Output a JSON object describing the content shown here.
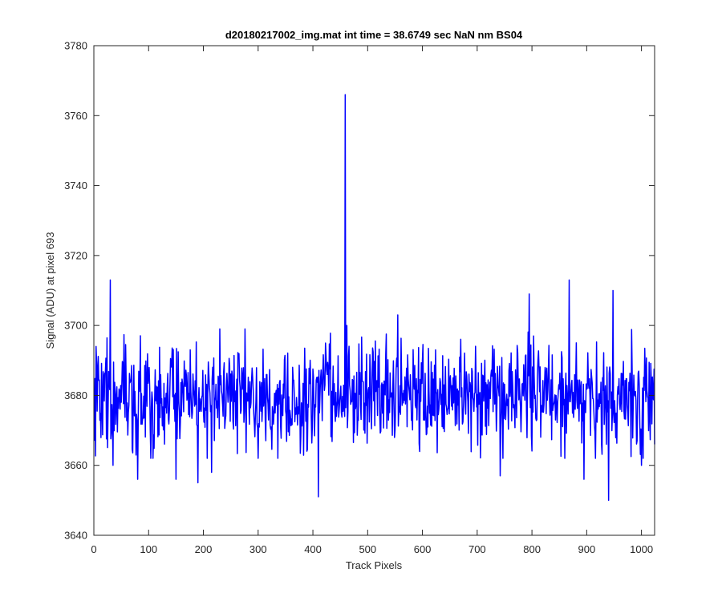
{
  "chart_data": {
    "type": "line",
    "title": "d20180217002_img.mat int time = 38.6749 sec  NaN nm BS04",
    "xlabel": "Track Pixels",
    "ylabel": "Signal (ADU) at pixel 693",
    "xlim": [
      0,
      1024
    ],
    "ylim": [
      3640,
      3780
    ],
    "xticks": [
      0,
      100,
      200,
      300,
      400,
      500,
      600,
      700,
      800,
      900,
      1000
    ],
    "yticks": [
      3640,
      3660,
      3680,
      3700,
      3720,
      3740,
      3760,
      3780
    ],
    "grid": false,
    "box": true,
    "series": [
      {
        "color": "#0000ff",
        "x_start": 1,
        "x_step": 1,
        "mean": 3680,
        "notable_points": [
          {
            "x": 1,
            "y": 3667
          },
          {
            "x": 4,
            "y": 3694
          },
          {
            "x": 30,
            "y": 3713
          },
          {
            "x": 35,
            "y": 3660
          },
          {
            "x": 80,
            "y": 3656
          },
          {
            "x": 150,
            "y": 3656
          },
          {
            "x": 190,
            "y": 3655
          },
          {
            "x": 215,
            "y": 3658
          },
          {
            "x": 410,
            "y": 3651
          },
          {
            "x": 459,
            "y": 3766
          },
          {
            "x": 462,
            "y": 3700
          },
          {
            "x": 555,
            "y": 3703
          },
          {
            "x": 742,
            "y": 3657
          },
          {
            "x": 795,
            "y": 3709
          },
          {
            "x": 868,
            "y": 3713
          },
          {
            "x": 895,
            "y": 3656
          },
          {
            "x": 940,
            "y": 3650
          },
          {
            "x": 948,
            "y": 3710
          },
          {
            "x": 1000,
            "y": 3660
          },
          {
            "x": 1024,
            "y": 3666
          }
        ]
      }
    ]
  }
}
